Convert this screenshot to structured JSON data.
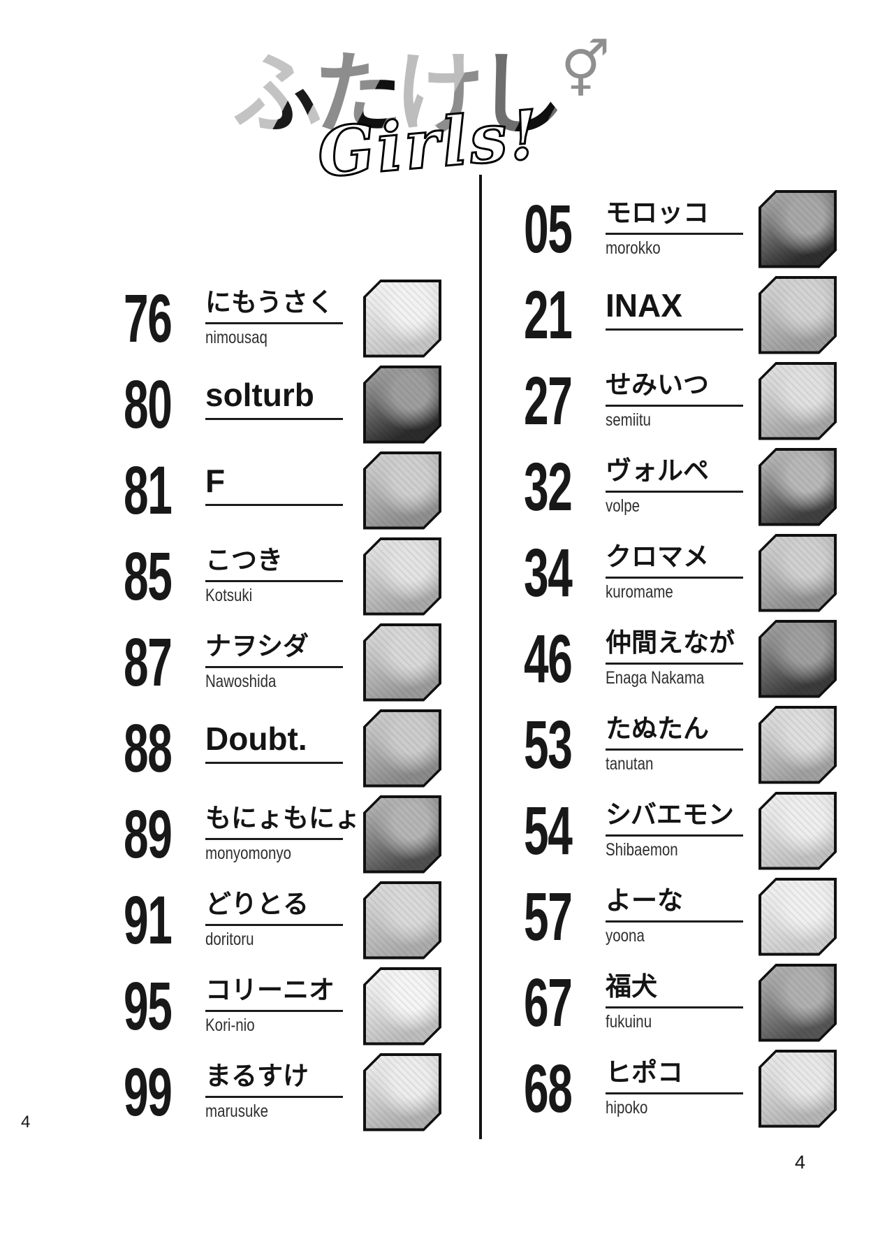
{
  "logo": {
    "title_chars": [
      {
        "char": "ふ",
        "c1": "#c3c3c3",
        "c2": "#1a1a1a"
      },
      {
        "char": "た",
        "c1": "#8d8d8d",
        "c2": "#111111"
      },
      {
        "char": "け",
        "c1": "#bdbdbd",
        "c2": "#8d8d8d"
      },
      {
        "char": "し",
        "c1": "#6e6e6e",
        "c2": "#0f0f0f"
      }
    ],
    "title": "ふたけし",
    "gender_symbol": "⚥",
    "subtitle": "Girls!"
  },
  "ink_color": "#131313",
  "toc": {
    "left_column": [
      {
        "page": "76",
        "name": "にもうさく",
        "romaji": "nimousaq",
        "thumb": {
          "tone_light": "#f2f2f2",
          "tone_dark": "#c4c4c4"
        }
      },
      {
        "page": "80",
        "name": "solturb",
        "romaji": "",
        "thumb": {
          "tone_light": "#9e9e9e",
          "tone_dark": "#2b2b2b"
        }
      },
      {
        "page": "81",
        "name": "F",
        "romaji": "",
        "thumb": {
          "tone_light": "#cfcfcf",
          "tone_dark": "#8f8f8f"
        }
      },
      {
        "page": "85",
        "name": "こつき",
        "romaji": "Kotsuki",
        "thumb": {
          "tone_light": "#e3e3e3",
          "tone_dark": "#a8a8a8"
        }
      },
      {
        "page": "87",
        "name": "ナヲシダ",
        "romaji": "Nawoshida",
        "thumb": {
          "tone_light": "#d8d8d8",
          "tone_dark": "#9a9a9a"
        }
      },
      {
        "page": "88",
        "name": "Doubt.",
        "romaji": "",
        "thumb": {
          "tone_light": "#cccccc",
          "tone_dark": "#8a8a8a"
        }
      },
      {
        "page": "89",
        "name": "もにょもにょ",
        "romaji": "monyomonyo",
        "thumb": {
          "tone_light": "#b5b5b5",
          "tone_dark": "#4f4f4f"
        }
      },
      {
        "page": "91",
        "name": "どりとる",
        "romaji": "doritoru",
        "thumb": {
          "tone_light": "#d9d9d9",
          "tone_dark": "#ababab"
        }
      },
      {
        "page": "95",
        "name": "コリーニオ",
        "romaji": "Kori-nio",
        "thumb": {
          "tone_light": "#f5f5f5",
          "tone_dark": "#bdbdbd"
        }
      },
      {
        "page": "99",
        "name": "まるすけ",
        "romaji": "marusuke",
        "thumb": {
          "tone_light": "#ededed",
          "tone_dark": "#b0b0b0"
        }
      }
    ],
    "right_column": [
      {
        "page": "05",
        "name": "モロッコ",
        "romaji": "morokko",
        "thumb": {
          "tone_light": "#a8a8a8",
          "tone_dark": "#2e2e2e"
        }
      },
      {
        "page": "21",
        "name": "INAX",
        "romaji": "",
        "thumb": {
          "tone_light": "#d3d3d3",
          "tone_dark": "#9c9c9c"
        }
      },
      {
        "page": "27",
        "name": "せみいつ",
        "romaji": "semiitu",
        "thumb": {
          "tone_light": "#e0e0e0",
          "tone_dark": "#a5a5a5"
        }
      },
      {
        "page": "32",
        "name": "ヴォルペ",
        "romaji": "volpe",
        "thumb": {
          "tone_light": "#b8b8b8",
          "tone_dark": "#3f3f3f"
        }
      },
      {
        "page": "34",
        "name": "クロマメ",
        "romaji": "kuromame",
        "thumb": {
          "tone_light": "#d0d0d0",
          "tone_dark": "#909090"
        }
      },
      {
        "page": "46",
        "name": "仲間えなが",
        "romaji": "Enaga Nakama",
        "thumb": {
          "tone_light": "#9f9f9f",
          "tone_dark": "#3a3a3a"
        }
      },
      {
        "page": "53",
        "name": "たぬたん",
        "romaji": "tanutan",
        "thumb": {
          "tone_light": "#dedede",
          "tone_dark": "#a0a0a0"
        }
      },
      {
        "page": "54",
        "name": "シバエモン",
        "romaji": "Shibaemon",
        "thumb": {
          "tone_light": "#eeeeee",
          "tone_dark": "#c0c0c0"
        }
      },
      {
        "page": "57",
        "name": "よーな",
        "romaji": "yoona",
        "thumb": {
          "tone_light": "#f0f0f0",
          "tone_dark": "#cccccc"
        }
      },
      {
        "page": "67",
        "name": "福犬",
        "romaji": "fukuinu",
        "thumb": {
          "tone_light": "#b0b0b0",
          "tone_dark": "#555555"
        }
      },
      {
        "page": "68",
        "name": "ヒポコ",
        "romaji": "hipoko",
        "thumb": {
          "tone_light": "#e8e8e8",
          "tone_dark": "#b5b5b5"
        }
      }
    ]
  },
  "footer": {
    "left_page_number": "4",
    "right_page_number": "4"
  }
}
